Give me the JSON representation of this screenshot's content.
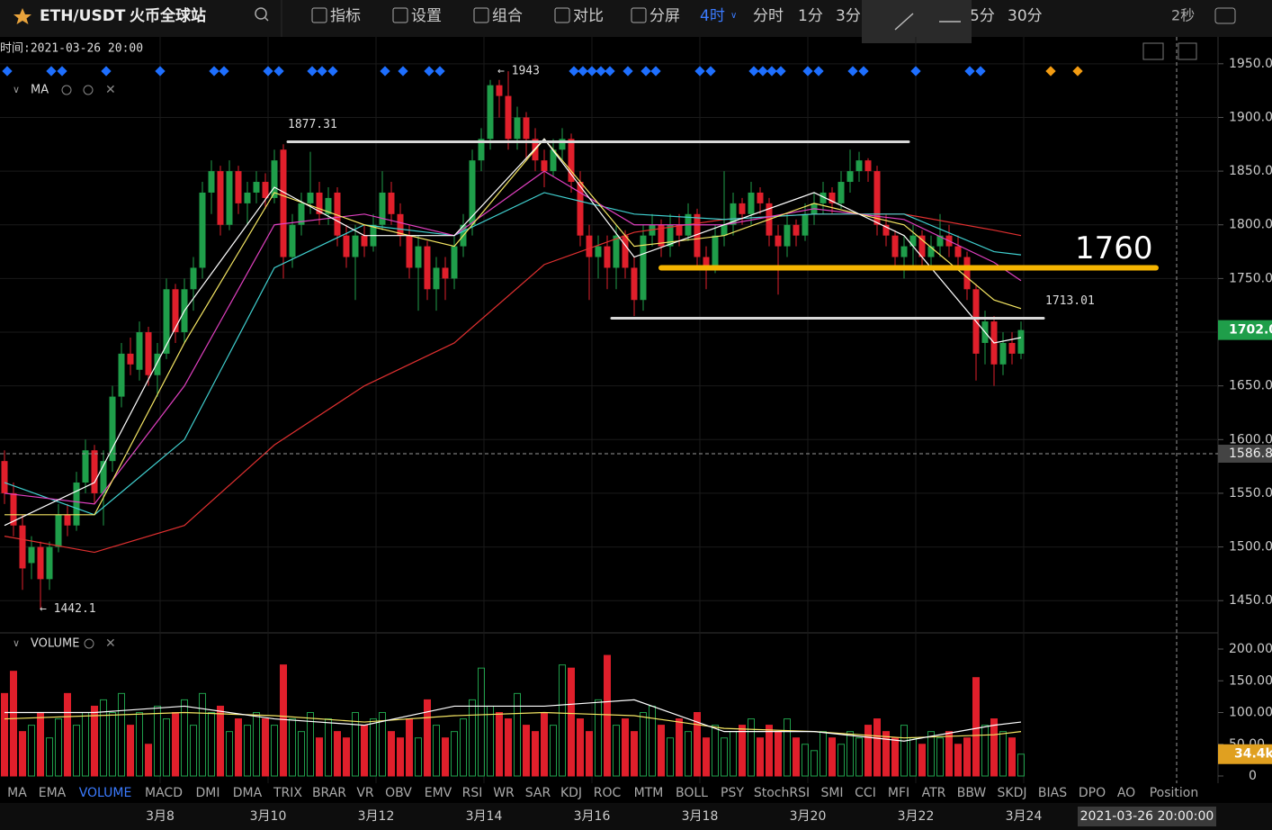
{
  "toolbar": {
    "symbol": "ETH/USDT",
    "exchange": "火币全球站",
    "menus": [
      "指标",
      "设置",
      "组合",
      "对比",
      "分屏"
    ],
    "intervals": [
      "4时",
      "分时",
      "1分",
      "3分",
      "5分",
      "30分"
    ],
    "refresh": "2秒"
  },
  "chart_data": {
    "type": "candlestick",
    "time_label": "时间:2021-03-26 20:00",
    "indicator_label": "MA",
    "up_color": "#1f9e4a",
    "down_color": "#e01f2b",
    "ohlc": [
      [
        1580,
        1590,
        1540,
        1550
      ],
      [
        1550,
        1560,
        1510,
        1520
      ],
      [
        1520,
        1530,
        1460,
        1480
      ],
      [
        1485,
        1510,
        1470,
        1500
      ],
      [
        1500,
        1505,
        1442,
        1470
      ],
      [
        1470,
        1505,
        1460,
        1500
      ],
      [
        1500,
        1540,
        1495,
        1530
      ],
      [
        1530,
        1540,
        1510,
        1520
      ],
      [
        1520,
        1570,
        1515,
        1560
      ],
      [
        1560,
        1600,
        1550,
        1590
      ],
      [
        1590,
        1595,
        1540,
        1550
      ],
      [
        1550,
        1590,
        1520,
        1580
      ],
      [
        1580,
        1650,
        1570,
        1640
      ],
      [
        1640,
        1690,
        1630,
        1680
      ],
      [
        1680,
        1695,
        1660,
        1670
      ],
      [
        1665,
        1710,
        1655,
        1700
      ],
      [
        1700,
        1705,
        1650,
        1660
      ],
      [
        1660,
        1690,
        1640,
        1680
      ],
      [
        1680,
        1750,
        1675,
        1740
      ],
      [
        1740,
        1745,
        1690,
        1700
      ],
      [
        1700,
        1750,
        1690,
        1740
      ],
      [
        1740,
        1770,
        1720,
        1760
      ],
      [
        1760,
        1840,
        1750,
        1830
      ],
      [
        1830,
        1860,
        1810,
        1850
      ],
      [
        1850,
        1855,
        1790,
        1800
      ],
      [
        1800,
        1860,
        1795,
        1850
      ],
      [
        1850,
        1855,
        1810,
        1820
      ],
      [
        1820,
        1840,
        1800,
        1830
      ],
      [
        1830,
        1850,
        1820,
        1840
      ],
      [
        1840,
        1848,
        1815,
        1825
      ],
      [
        1825,
        1870,
        1820,
        1860
      ],
      [
        1870,
        1875,
        1750,
        1770
      ],
      [
        1770,
        1810,
        1760,
        1800
      ],
      [
        1800,
        1830,
        1790,
        1820
      ],
      [
        1820,
        1868,
        1810,
        1830
      ],
      [
        1830,
        1840,
        1800,
        1810
      ],
      [
        1810,
        1835,
        1800,
        1825
      ],
      [
        1830,
        1835,
        1780,
        1790
      ],
      [
        1790,
        1800,
        1760,
        1770
      ],
      [
        1770,
        1800,
        1730,
        1790
      ],
      [
        1790,
        1800,
        1770,
        1780
      ],
      [
        1780,
        1810,
        1775,
        1800
      ],
      [
        1800,
        1850,
        1795,
        1830
      ],
      [
        1830,
        1840,
        1800,
        1810
      ],
      [
        1810,
        1820,
        1780,
        1790
      ],
      [
        1790,
        1800,
        1750,
        1760
      ],
      [
        1760,
        1790,
        1720,
        1780
      ],
      [
        1780,
        1785,
        1730,
        1740
      ],
      [
        1740,
        1770,
        1720,
        1760
      ],
      [
        1760,
        1770,
        1730,
        1750
      ],
      [
        1750,
        1790,
        1740,
        1780
      ],
      [
        1780,
        1810,
        1770,
        1800
      ],
      [
        1800,
        1870,
        1790,
        1860
      ],
      [
        1860,
        1890,
        1850,
        1880
      ],
      [
        1880,
        1935,
        1870,
        1930
      ],
      [
        1930,
        1935,
        1900,
        1920
      ],
      [
        1920,
        1943,
        1870,
        1880
      ],
      [
        1880,
        1910,
        1870,
        1900
      ],
      [
        1900,
        1905,
        1860,
        1880
      ],
      [
        1880,
        1890,
        1850,
        1860
      ],
      [
        1860,
        1870,
        1835,
        1850
      ],
      [
        1850,
        1880,
        1845,
        1870
      ],
      [
        1870,
        1890,
        1860,
        1880
      ],
      [
        1880,
        1885,
        1830,
        1840
      ],
      [
        1840,
        1850,
        1780,
        1790
      ],
      [
        1790,
        1800,
        1730,
        1770
      ],
      [
        1770,
        1790,
        1750,
        1780
      ],
      [
        1780,
        1790,
        1740,
        1760
      ],
      [
        1760,
        1800,
        1740,
        1790
      ],
      [
        1790,
        1795,
        1750,
        1760
      ],
      [
        1760,
        1770,
        1715,
        1730
      ],
      [
        1730,
        1800,
        1720,
        1790
      ],
      [
        1790,
        1810,
        1780,
        1800
      ],
      [
        1800,
        1805,
        1770,
        1780
      ],
      [
        1780,
        1810,
        1770,
        1800
      ],
      [
        1800,
        1810,
        1780,
        1790
      ],
      [
        1790,
        1820,
        1785,
        1810
      ],
      [
        1810,
        1815,
        1760,
        1770
      ],
      [
        1770,
        1780,
        1740,
        1760
      ],
      [
        1760,
        1800,
        1755,
        1790
      ],
      [
        1790,
        1850,
        1780,
        1800
      ],
      [
        1800,
        1830,
        1790,
        1820
      ],
      [
        1820,
        1825,
        1800,
        1810
      ],
      [
        1810,
        1840,
        1800,
        1830
      ],
      [
        1830,
        1835,
        1810,
        1820
      ],
      [
        1820,
        1825,
        1780,
        1790
      ],
      [
        1790,
        1800,
        1735,
        1780
      ],
      [
        1780,
        1810,
        1770,
        1800
      ],
      [
        1800,
        1805,
        1780,
        1790
      ],
      [
        1790,
        1820,
        1785,
        1810
      ],
      [
        1810,
        1830,
        1800,
        1820
      ],
      [
        1820,
        1840,
        1810,
        1830
      ],
      [
        1830,
        1835,
        1810,
        1820
      ],
      [
        1820,
        1850,
        1815,
        1840
      ],
      [
        1840,
        1870,
        1830,
        1850
      ],
      [
        1850,
        1868,
        1840,
        1860
      ],
      [
        1860,
        1862,
        1840,
        1850
      ],
      [
        1850,
        1855,
        1790,
        1800
      ],
      [
        1800,
        1810,
        1780,
        1790
      ],
      [
        1790,
        1795,
        1760,
        1770
      ],
      [
        1770,
        1790,
        1750,
        1780
      ],
      [
        1780,
        1800,
        1760,
        1790
      ],
      [
        1790,
        1795,
        1760,
        1770
      ],
      [
        1770,
        1790,
        1760,
        1780
      ],
      [
        1780,
        1810,
        1770,
        1790
      ],
      [
        1790,
        1800,
        1770,
        1780
      ],
      [
        1780,
        1790,
        1760,
        1770
      ],
      [
        1770,
        1775,
        1730,
        1740
      ],
      [
        1740,
        1745,
        1655,
        1680
      ],
      [
        1690,
        1720,
        1670,
        1710
      ],
      [
        1710,
        1715,
        1650,
        1670
      ],
      [
        1670,
        1700,
        1660,
        1690
      ],
      [
        1690,
        1700,
        1670,
        1680
      ],
      [
        1680,
        1710,
        1675,
        1702
      ]
    ],
    "ylim": [
      1420,
      1975
    ],
    "yticks": [
      {
        "value": 1450,
        "label": "1450.00"
      },
      {
        "value": 1500,
        "label": "1500.00"
      },
      {
        "value": 1550,
        "label": "1550.00"
      },
      {
        "value": 1600,
        "label": "1600.00"
      },
      {
        "value": 1650,
        "label": "1650.00"
      },
      {
        "value": 1700,
        "label": "1700.00"
      },
      {
        "value": 1750,
        "label": "1750.00"
      },
      {
        "value": 1800,
        "label": "1800.00"
      },
      {
        "value": 1850,
        "label": "1850.00"
      },
      {
        "value": 1900,
        "label": "1900.00"
      },
      {
        "value": 1950,
        "label": "1950.00"
      }
    ],
    "ma_x": [
      0,
      10,
      20,
      30,
      40,
      50,
      60,
      70,
      80,
      90,
      100,
      110,
      113
    ],
    "ma": [
      {
        "color": "#e03030",
        "values": [
          1510,
          1495,
          1520,
          1595,
          1650,
          1690,
          1763,
          1793,
          1805,
          1810,
          1810,
          1795,
          1790
        ]
      },
      {
        "color": "#40d0d0",
        "values": [
          1560,
          1530,
          1600,
          1760,
          1800,
          1790,
          1830,
          1810,
          1805,
          1810,
          1810,
          1775,
          1772
        ]
      },
      {
        "color": "#e040c0",
        "values": [
          1550,
          1540,
          1650,
          1800,
          1810,
          1790,
          1850,
          1800,
          1800,
          1815,
          1805,
          1765,
          1748
        ]
      },
      {
        "color": "#f5e663",
        "values": [
          1530,
          1530,
          1690,
          1830,
          1800,
          1780,
          1880,
          1780,
          1790,
          1820,
          1800,
          1730,
          1722
        ]
      },
      {
        "color": "#ffffff",
        "values": [
          1520,
          1560,
          1720,
          1835,
          1790,
          1790,
          1880,
          1770,
          1800,
          1830,
          1790,
          1690,
          1695
        ]
      }
    ],
    "levels": [
      {
        "label": "1877.31",
        "value": 1877.31,
        "color": "#d8d8d8"
      },
      {
        "label": "1713.01",
        "value": 1713.01,
        "color": "#d8d8d8"
      },
      {
        "label": "1760",
        "value": 1760,
        "color": "#f5b400"
      }
    ],
    "high_marker": {
      "label": "← 1943",
      "value": 1943
    },
    "low_marker": {
      "label": "← 1442.1",
      "value": 1442.1
    },
    "last_price": {
      "value": 1702,
      "label": "1702.00",
      "color": "#1f9e4a"
    },
    "crosshair": {
      "value": 1586.85,
      "label": "1586.85"
    },
    "volume_panel": {
      "label": "VOLUME",
      "values": [
        130,
        165,
        70,
        80,
        100,
        60,
        90,
        130,
        80,
        100,
        110,
        120,
        100,
        130,
        80,
        100,
        50,
        110,
        90,
        100,
        120,
        80,
        130,
        100,
        110,
        70,
        90,
        80,
        100,
        90,
        80,
        175,
        90,
        70,
        100,
        60,
        90,
        70,
        60,
        100,
        80,
        90,
        100,
        70,
        60,
        90,
        60,
        120,
        80,
        60,
        70,
        90,
        120,
        170,
        110,
        100,
        90,
        130,
        80,
        70,
        100,
        80,
        175,
        170,
        90,
        70,
        120,
        190,
        80,
        90,
        70,
        100,
        110,
        80,
        60,
        90,
        70,
        100,
        60,
        80,
        60,
        70,
        80,
        90,
        60,
        80,
        70,
        90,
        60,
        50,
        40,
        70,
        60,
        50,
        70,
        60,
        80,
        90,
        70,
        60,
        80,
        60,
        50,
        70,
        60,
        70,
        50,
        60,
        155,
        80,
        90,
        70,
        60,
        34.4
      ],
      "ylim": [
        0,
        200
      ],
      "yticks": [
        0,
        {
          "value": 50,
          "label": "50.00"
        },
        {
          "value": 100,
          "label": "100.00"
        },
        {
          "value": 150,
          "label": "150.00"
        },
        {
          "value": 200,
          "label": "200.00"
        }
      ],
      "ma": [
        {
          "color": "#f5e663",
          "values": [
            90,
            95,
            100,
            95,
            85,
            95,
            100,
            95,
            75,
            70,
            60,
            65,
            70
          ]
        },
        {
          "color": "#ffffff",
          "values": [
            100,
            100,
            110,
            90,
            80,
            110,
            110,
            120,
            70,
            70,
            55,
            80,
            85
          ]
        }
      ],
      "last": {
        "value": 34.4,
        "label": "34.4k",
        "color": "#e0a020"
      }
    },
    "date_ticks": [
      {
        "value": 17.3,
        "label": "3月8"
      },
      {
        "value": 29.3,
        "label": "3月10"
      },
      {
        "value": 41.3,
        "label": "3月12"
      },
      {
        "value": 53.3,
        "label": "3月14"
      },
      {
        "value": 65.3,
        "label": "3月16"
      },
      {
        "value": 77.3,
        "label": "3月18"
      },
      {
        "value": 89.3,
        "label": "3月20"
      },
      {
        "value": 101.3,
        "label": "3月22"
      },
      {
        "value": 113.3,
        "label": "3月24"
      }
    ],
    "cursor_time": "2021-03-26 20:00:00"
  },
  "indicators": [
    "MA",
    "EMA",
    "VOLUME",
    "MACD",
    "DMI",
    "DMA",
    "TRIX",
    "BRAR",
    "VR",
    "OBV",
    "EMV",
    "RSI",
    "WR",
    "SAR",
    "KDJ",
    "ROC",
    "MTM",
    "BOLL",
    "PSY",
    "StochRSI",
    "SMI",
    "CCI",
    "MFI",
    "ATR",
    "BBW",
    "SKDJ",
    "BIAS",
    "DPO",
    "AO",
    "Position"
  ]
}
